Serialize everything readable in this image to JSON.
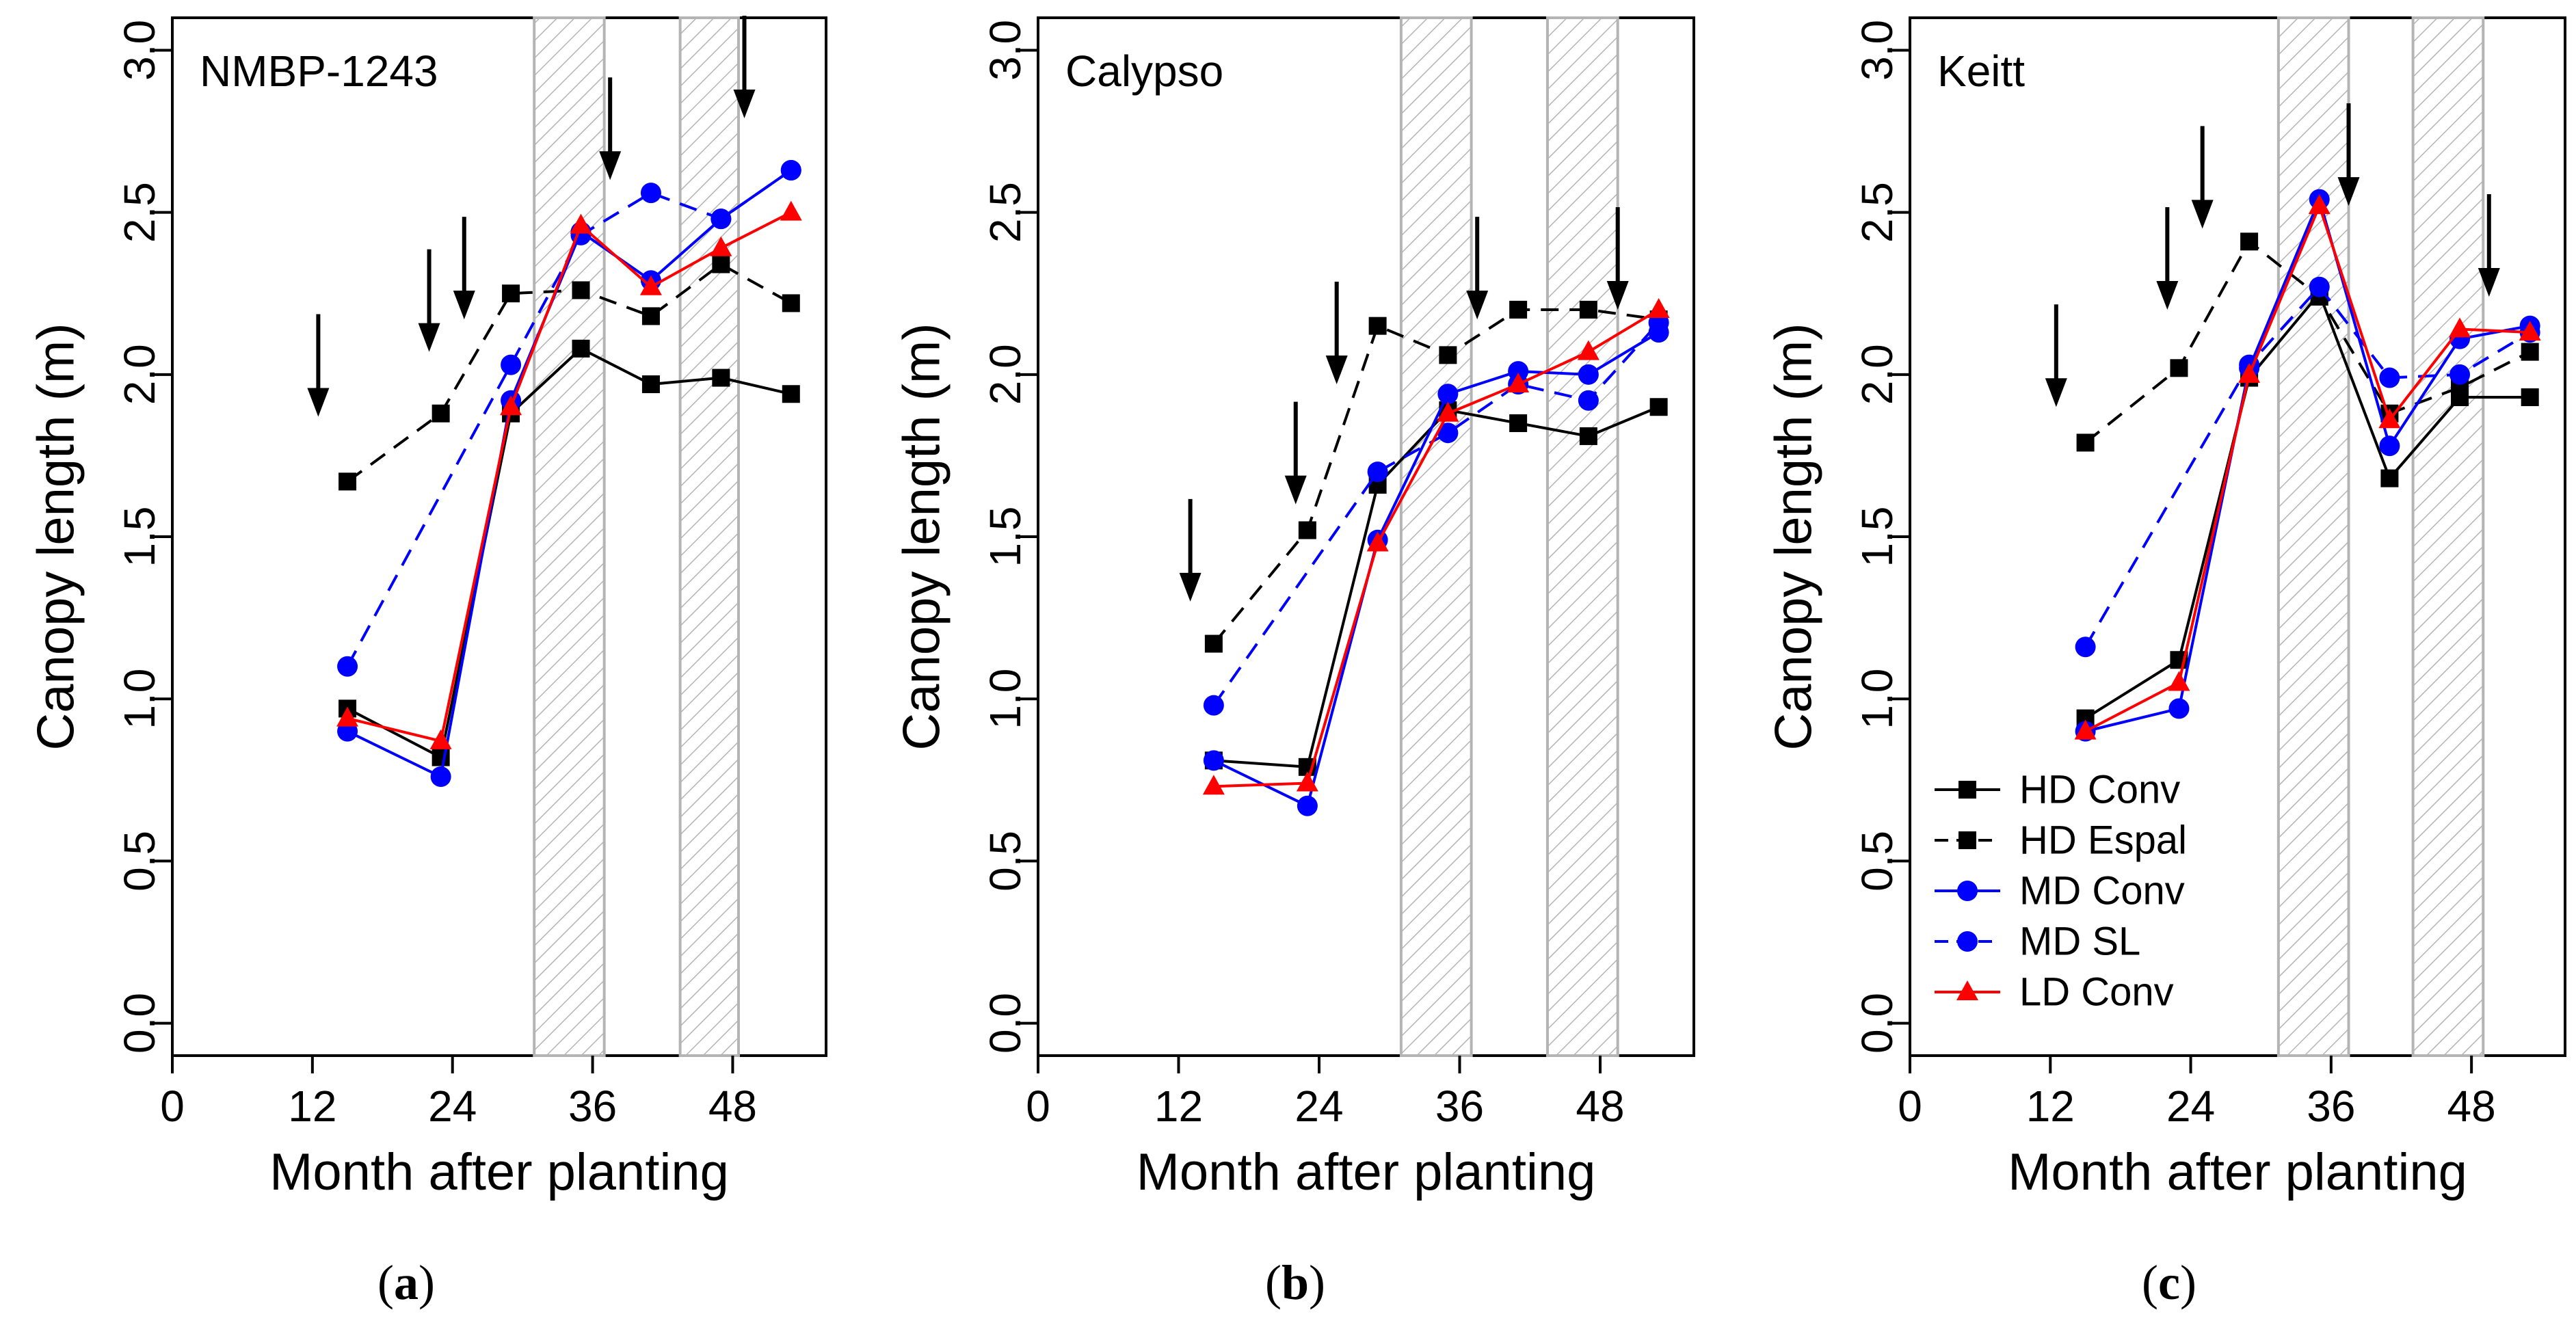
{
  "figure": {
    "panels": [
      {
        "caption_letter": "a",
        "chart_data": {
          "type": "line",
          "title": "NMBP-1243",
          "xlabel": "Month after planting",
          "ylabel": "Canopy length (m)",
          "xlim": [
            0,
            56
          ],
          "ylim": [
            -0.1,
            3.1
          ],
          "xticks": [
            0,
            12,
            24,
            36,
            48
          ],
          "yticks": [
            0.0,
            0.5,
            1.0,
            1.5,
            2.0,
            2.5,
            3.0
          ],
          "ytick_labels": [
            "0.0",
            "0.5",
            "1.0",
            "1.5",
            "2.0",
            "2.5",
            "3.0"
          ],
          "shaded_periods": [
            [
              31,
              37
            ],
            [
              43.5,
              48.5
            ]
          ],
          "arrows_at_months": [
            12.5,
            22,
            25,
            37.5,
            49
          ],
          "series": [
            {
              "name": "HD Conv",
              "x": [
                15,
                23,
                29,
                35,
                41,
                47,
                53
              ],
              "values": [
                0.97,
                0.82,
                1.88,
                2.08,
                1.97,
                1.99,
                1.94
              ]
            },
            {
              "name": "HD Espal",
              "x": [
                15,
                23,
                29,
                35,
                41,
                47,
                53
              ],
              "values": [
                1.67,
                1.88,
                2.25,
                2.26,
                2.18,
                2.34,
                2.22
              ]
            },
            {
              "name": "MD Conv",
              "x": [
                15,
                23,
                29,
                35,
                41,
                47,
                53
              ],
              "values": [
                0.9,
                0.76,
                1.92,
                2.44,
                2.29,
                2.48,
                2.63
              ]
            },
            {
              "name": "MD SL",
              "x": [
                15,
                29,
                35,
                41,
                47,
                53
              ],
              "values": [
                1.1,
                2.03,
                2.43,
                2.56,
                2.48,
                2.63
              ]
            },
            {
              "name": "LD Conv",
              "x": [
                15,
                23,
                29,
                35,
                41,
                47,
                53
              ],
              "values": [
                0.94,
                0.87,
                1.9,
                2.46,
                2.27,
                2.39,
                2.5
              ]
            }
          ]
        }
      },
      {
        "caption_letter": "b",
        "chart_data": {
          "type": "line",
          "title": "Calypso",
          "xlabel": "Month after planting",
          "ylabel": "Canopy length (m)",
          "xlim": [
            0,
            56
          ],
          "ylim": [
            -0.1,
            3.1
          ],
          "xticks": [
            0,
            12,
            24,
            36,
            48
          ],
          "yticks": [
            0.0,
            0.5,
            1.0,
            1.5,
            2.0,
            2.5,
            3.0
          ],
          "ytick_labels": [
            "0.0",
            "0.5",
            "1.0",
            "1.5",
            "2.0",
            "2.5",
            "3.0"
          ],
          "shaded_periods": [
            [
              31,
              37
            ],
            [
              43.5,
              49.5
            ]
          ],
          "arrows_at_months": [
            13,
            22,
            25.5,
            37.5,
            49.5
          ],
          "series": [
            {
              "name": "HD Conv",
              "x": [
                15,
                23,
                29,
                35,
                41,
                47,
                53
              ],
              "values": [
                0.81,
                0.79,
                1.66,
                1.89,
                1.85,
                1.81,
                1.9
              ]
            },
            {
              "name": "HD Espal",
              "x": [
                15,
                23,
                29,
                35,
                41,
                47,
                53
              ],
              "values": [
                1.17,
                1.52,
                2.15,
                2.06,
                2.2,
                2.2,
                2.17
              ]
            },
            {
              "name": "MD Conv",
              "x": [
                15,
                23,
                29,
                35,
                41,
                47,
                53
              ],
              "values": [
                0.81,
                0.67,
                1.49,
                1.94,
                2.01,
                2.0,
                2.13
              ]
            },
            {
              "name": "MD SL",
              "x": [
                15,
                29,
                35,
                41,
                47,
                53
              ],
              "values": [
                0.98,
                1.7,
                1.82,
                1.97,
                1.92,
                2.16
              ]
            },
            {
              "name": "LD Conv",
              "x": [
                15,
                23,
                29,
                35,
                41,
                47,
                53
              ],
              "values": [
                0.73,
                0.74,
                1.48,
                1.88,
                1.97,
                2.07,
                2.2
              ]
            }
          ]
        }
      },
      {
        "caption_letter": "c",
        "chart_data": {
          "type": "line",
          "title": "Keitt",
          "xlabel": "Month after planting",
          "ylabel": "Canopy length (m)",
          "xlim": [
            0,
            56
          ],
          "ylim": [
            -0.1,
            3.1
          ],
          "xticks": [
            0,
            12,
            24,
            36,
            48
          ],
          "yticks": [
            0.0,
            0.5,
            1.0,
            1.5,
            2.0,
            2.5,
            3.0
          ],
          "ytick_labels": [
            "0.0",
            "0.5",
            "1.0",
            "1.5",
            "2.0",
            "2.5",
            "3.0"
          ],
          "legend": "bottom-left",
          "shaded_periods": [
            [
              31.5,
              37.5
            ],
            [
              43,
              49
            ]
          ],
          "arrows_at_months": [
            12.5,
            22,
            25,
            37.5,
            49.5
          ],
          "series": [
            {
              "name": "HD Conv",
              "x": [
                15,
                23,
                29,
                35,
                41,
                47,
                53
              ],
              "values": [
                0.94,
                1.12,
                1.99,
                2.25,
                1.68,
                1.93,
                1.93
              ]
            },
            {
              "name": "HD Espal",
              "x": [
                15,
                23,
                29,
                35,
                41,
                47,
                53
              ],
              "values": [
                1.79,
                2.02,
                2.41,
                2.24,
                1.88,
                1.96,
                2.07
              ]
            },
            {
              "name": "MD Conv",
              "x": [
                15,
                23,
                29,
                35,
                41,
                47,
                53
              ],
              "values": [
                0.9,
                0.97,
                2.02,
                2.54,
                1.78,
                2.11,
                2.15
              ]
            },
            {
              "name": "MD SL",
              "x": [
                15,
                29,
                35,
                41,
                47,
                53
              ],
              "values": [
                1.16,
                2.03,
                2.27,
                1.99,
                2.0,
                2.13
              ]
            },
            {
              "name": "LD Conv",
              "x": [
                15,
                23,
                29,
                35,
                41,
                47,
                53
              ],
              "values": [
                0.9,
                1.05,
                2.0,
                2.52,
                1.86,
                2.14,
                2.13
              ]
            }
          ]
        }
      }
    ],
    "series_styles": {
      "HD Conv": {
        "color": "#000000",
        "dash": "solid",
        "marker": "square"
      },
      "HD Espal": {
        "color": "#000000",
        "dash": "dashed",
        "marker": "square"
      },
      "MD Conv": {
        "color": "#0000ff",
        "dash": "solid",
        "marker": "circle"
      },
      "MD SL": {
        "color": "#0000ff",
        "dash": "dashed",
        "marker": "circle"
      },
      "LD Conv": {
        "color": "#ff0000",
        "dash": "solid",
        "marker": "triangle"
      }
    },
    "colors": {
      "shade_line": "#b4b4b4",
      "axis": "#000000"
    }
  }
}
